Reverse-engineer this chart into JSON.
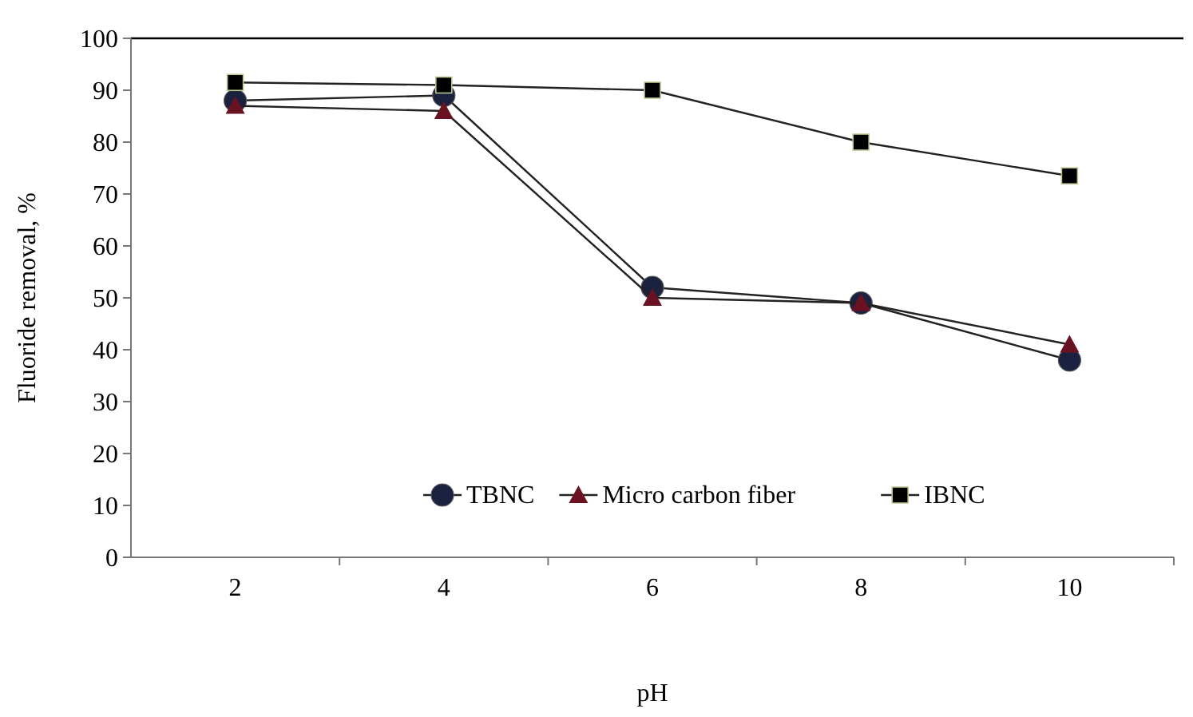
{
  "chart_data": {
    "type": "line",
    "xlabel": "pH",
    "ylabel": "Fluoride removal, %",
    "categories": [
      "2",
      "4",
      "6",
      "8",
      "10"
    ],
    "series": [
      {
        "name": "TBNC",
        "color": "#1b2240",
        "marker": "circle",
        "values": [
          88,
          89,
          52,
          49,
          38
        ]
      },
      {
        "name": "Micro carbon fiber",
        "color": "#6a1222",
        "marker": "triangle",
        "values": [
          87,
          86,
          50,
          49,
          41
        ]
      },
      {
        "name": "IBNC",
        "color": "#000000",
        "marker": "square",
        "values": [
          91.5,
          91,
          90,
          80,
          73.5
        ]
      }
    ],
    "ylim": [
      0,
      100
    ],
    "yticks": [
      0,
      10,
      20,
      30,
      40,
      50,
      60,
      70,
      80,
      90,
      100
    ],
    "grid": false,
    "legend": "bottom"
  }
}
